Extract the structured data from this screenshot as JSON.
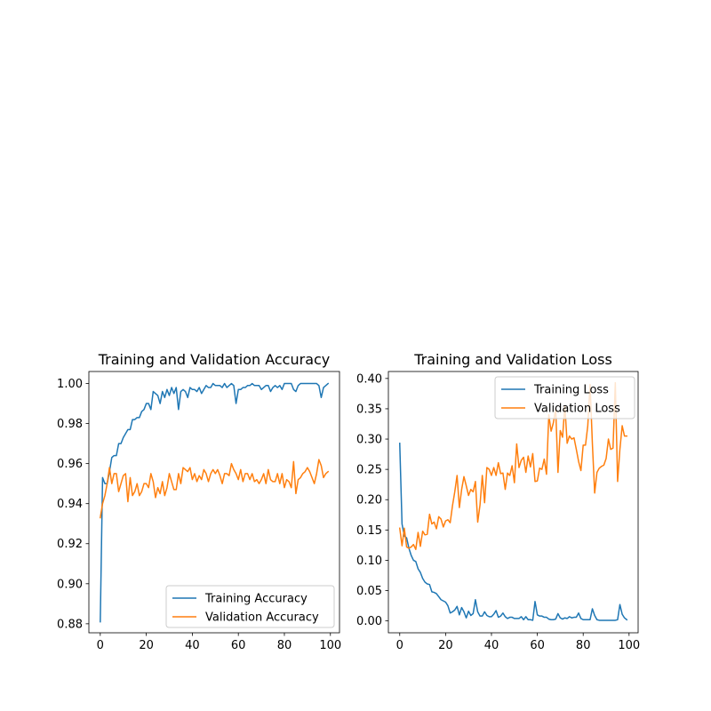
{
  "chart_data": [
    {
      "type": "line",
      "title": "Training and Validation Accuracy",
      "xlabel": "",
      "ylabel": "",
      "xlim": [
        -4.95,
        103.95
      ],
      "ylim": [
        0.8755,
        1.006
      ],
      "xticks": [
        0,
        20,
        40,
        60,
        80,
        100
      ],
      "yticks": [
        0.88,
        0.9,
        0.92,
        0.94,
        0.96,
        0.98,
        1.0
      ],
      "ytick_labels": [
        "0.88",
        "0.90",
        "0.92",
        "0.94",
        "0.96",
        "0.98",
        "1.00"
      ],
      "grid": false,
      "legend_position": "lower-right",
      "series": [
        {
          "name": "Training Accuracy",
          "color": "#1f77b4",
          "x": [
            0,
            1,
            2,
            3,
            4,
            5,
            6,
            7,
            8,
            9,
            10,
            11,
            12,
            13,
            14,
            15,
            16,
            17,
            18,
            19,
            20,
            21,
            22,
            23,
            24,
            25,
            26,
            27,
            28,
            29,
            30,
            31,
            32,
            33,
            34,
            35,
            36,
            37,
            38,
            39,
            40,
            41,
            42,
            43,
            44,
            45,
            46,
            47,
            48,
            49,
            50,
            51,
            52,
            53,
            54,
            55,
            56,
            57,
            58,
            59,
            60,
            61,
            62,
            63,
            64,
            65,
            66,
            67,
            68,
            69,
            70,
            71,
            72,
            73,
            74,
            75,
            76,
            77,
            78,
            79,
            80,
            81,
            82,
            83,
            84,
            85,
            86,
            87,
            88,
            89,
            90,
            91,
            92,
            93,
            94,
            95,
            96,
            97,
            98,
            99
          ],
          "values": [
            0.881,
            0.953,
            0.95,
            0.95,
            0.956,
            0.963,
            0.964,
            0.964,
            0.97,
            0.97,
            0.973,
            0.975,
            0.977,
            0.977,
            0.982,
            0.982,
            0.983,
            0.983,
            0.986,
            0.987,
            0.99,
            0.99,
            0.987,
            0.996,
            0.995,
            0.994,
            0.99,
            0.996,
            0.993,
            0.997,
            0.994,
            0.998,
            0.995,
            0.998,
            0.987,
            0.996,
            0.997,
            0.996,
            0.993,
            0.998,
            0.997,
            0.997,
            0.996,
            0.998,
            0.995,
            0.997,
            0.999,
            0.998,
            0.998,
            1.0,
            0.999,
            0.999,
            0.999,
            0.998,
            1.0,
            0.998,
            0.999,
            1.0,
            0.999,
            0.99,
            0.997,
            0.997,
            0.998,
            0.998,
            0.999,
            0.999,
            1.0,
            0.999,
            0.999,
            0.999,
            0.997,
            0.998,
            0.999,
            0.999,
            0.996,
            0.998,
            0.999,
            0.998,
            0.999,
            0.997,
            1.0,
            1.0,
            1.0,
            1.0,
            0.997,
            0.996,
            0.999,
            1.0,
            1.0,
            1.0,
            1.0,
            1.0,
            1.0,
            1.0,
            1.0,
            0.999,
            0.993,
            0.998,
            0.999,
            1.0
          ]
        },
        {
          "name": "Validation Accuracy",
          "color": "#ff7f0e",
          "x": [
            0,
            1,
            2,
            3,
            4,
            5,
            6,
            7,
            8,
            9,
            10,
            11,
            12,
            13,
            14,
            15,
            16,
            17,
            18,
            19,
            20,
            21,
            22,
            23,
            24,
            25,
            26,
            27,
            28,
            29,
            30,
            31,
            32,
            33,
            34,
            35,
            36,
            37,
            38,
            39,
            40,
            41,
            42,
            43,
            44,
            45,
            46,
            47,
            48,
            49,
            50,
            51,
            52,
            53,
            54,
            55,
            56,
            57,
            58,
            59,
            60,
            61,
            62,
            63,
            64,
            65,
            66,
            67,
            68,
            69,
            70,
            71,
            72,
            73,
            74,
            75,
            76,
            77,
            78,
            79,
            80,
            81,
            82,
            83,
            84,
            85,
            86,
            87,
            88,
            89,
            90,
            91,
            92,
            93,
            94,
            95,
            96,
            97,
            98,
            99
          ],
          "values": [
            0.933,
            0.94,
            0.944,
            0.95,
            0.958,
            0.95,
            0.955,
            0.955,
            0.946,
            0.95,
            0.954,
            0.955,
            0.941,
            0.953,
            0.944,
            0.946,
            0.95,
            0.944,
            0.946,
            0.95,
            0.95,
            0.948,
            0.955,
            0.951,
            0.943,
            0.948,
            0.945,
            0.951,
            0.944,
            0.948,
            0.955,
            0.951,
            0.947,
            0.947,
            0.955,
            0.95,
            0.958,
            0.957,
            0.956,
            0.958,
            0.952,
            0.955,
            0.951,
            0.954,
            0.952,
            0.957,
            0.955,
            0.951,
            0.955,
            0.957,
            0.955,
            0.957,
            0.954,
            0.95,
            0.955,
            0.955,
            0.954,
            0.96,
            0.957,
            0.955,
            0.952,
            0.957,
            0.951,
            0.955,
            0.955,
            0.952,
            0.955,
            0.951,
            0.952,
            0.95,
            0.952,
            0.955,
            0.95,
            0.957,
            0.952,
            0.951,
            0.951,
            0.955,
            0.95,
            0.955,
            0.948,
            0.952,
            0.951,
            0.948,
            0.961,
            0.945,
            0.952,
            0.953,
            0.955,
            0.956,
            0.958,
            0.956,
            0.953,
            0.95,
            0.955,
            0.962,
            0.959,
            0.953,
            0.955,
            0.956
          ]
        }
      ]
    },
    {
      "type": "line",
      "title": "Training and Validation Loss",
      "xlabel": "",
      "ylabel": "",
      "xlim": [
        -4.95,
        103.95
      ],
      "ylim": [
        -0.0196,
        0.4115
      ],
      "xticks": [
        0,
        20,
        40,
        60,
        80,
        100
      ],
      "yticks": [
        0.0,
        0.05,
        0.1,
        0.15,
        0.2,
        0.25,
        0.3,
        0.35,
        0.4
      ],
      "ytick_labels": [
        "0.00",
        "0.05",
        "0.10",
        "0.15",
        "0.20",
        "0.25",
        "0.30",
        "0.35",
        "0.40"
      ],
      "grid": false,
      "legend_position": "upper-right",
      "series": [
        {
          "name": "Training Loss",
          "color": "#1f77b4",
          "x": [
            0,
            1,
            2,
            3,
            4,
            5,
            6,
            7,
            8,
            9,
            10,
            11,
            12,
            13,
            14,
            15,
            16,
            17,
            18,
            19,
            20,
            21,
            22,
            23,
            24,
            25,
            26,
            27,
            28,
            29,
            30,
            31,
            32,
            33,
            34,
            35,
            36,
            37,
            38,
            39,
            40,
            41,
            42,
            43,
            44,
            45,
            46,
            47,
            48,
            49,
            50,
            51,
            52,
            53,
            54,
            55,
            56,
            57,
            58,
            59,
            60,
            61,
            62,
            63,
            64,
            65,
            66,
            67,
            68,
            69,
            70,
            71,
            72,
            73,
            74,
            75,
            76,
            77,
            78,
            79,
            80,
            81,
            82,
            83,
            84,
            85,
            86,
            87,
            88,
            89,
            90,
            91,
            92,
            93,
            94,
            95,
            96,
            97,
            98,
            99
          ],
          "values": [
            0.293,
            0.16,
            0.14,
            0.137,
            0.12,
            0.108,
            0.1,
            0.098,
            0.086,
            0.08,
            0.07,
            0.064,
            0.061,
            0.06,
            0.048,
            0.047,
            0.045,
            0.04,
            0.035,
            0.033,
            0.031,
            0.025,
            0.013,
            0.015,
            0.018,
            0.024,
            0.01,
            0.022,
            0.015,
            0.005,
            0.016,
            0.009,
            0.012,
            0.035,
            0.015,
            0.008,
            0.008,
            0.015,
            0.009,
            0.007,
            0.007,
            0.011,
            0.017,
            0.006,
            0.008,
            0.013,
            0.007,
            0.004,
            0.006,
            0.006,
            0.004,
            0.004,
            0.004,
            0.007,
            0.002,
            0.007,
            0.002,
            0.002,
            0.001,
            0.032,
            0.01,
            0.008,
            0.008,
            0.006,
            0.006,
            0.003,
            0.002,
            0.002,
            0.003,
            0.012,
            0.005,
            0.003,
            0.005,
            0.004,
            0.007,
            0.005,
            0.006,
            0.006,
            0.013,
            0.004,
            0.002,
            0.002,
            0.002,
            0.002,
            0.02,
            0.009,
            0.002,
            0.001,
            0.001,
            0.001,
            0.001,
            0.001,
            0.001,
            0.001,
            0.001,
            0.002,
            0.027,
            0.011,
            0.005,
            0.002
          ]
        },
        {
          "name": "Validation Loss",
          "color": "#ff7f0e",
          "x": [
            0,
            1,
            2,
            3,
            4,
            5,
            6,
            7,
            8,
            9,
            10,
            11,
            12,
            13,
            14,
            15,
            16,
            17,
            18,
            19,
            20,
            21,
            22,
            23,
            24,
            25,
            26,
            27,
            28,
            29,
            30,
            31,
            32,
            33,
            34,
            35,
            36,
            37,
            38,
            39,
            40,
            41,
            42,
            43,
            44,
            45,
            46,
            47,
            48,
            49,
            50,
            51,
            52,
            53,
            54,
            55,
            56,
            57,
            58,
            59,
            60,
            61,
            62,
            63,
            64,
            65,
            66,
            67,
            68,
            69,
            70,
            71,
            72,
            73,
            74,
            75,
            76,
            77,
            78,
            79,
            80,
            81,
            82,
            83,
            84,
            85,
            86,
            87,
            88,
            89,
            90,
            91,
            92,
            93,
            94,
            95,
            96,
            97,
            98,
            99
          ],
          "values": [
            0.153,
            0.124,
            0.153,
            0.122,
            0.12,
            0.122,
            0.126,
            0.118,
            0.146,
            0.123,
            0.148,
            0.142,
            0.143,
            0.176,
            0.16,
            0.163,
            0.152,
            0.172,
            0.168,
            0.155,
            0.165,
            0.167,
            0.162,
            0.19,
            0.213,
            0.24,
            0.187,
            0.217,
            0.238,
            0.223,
            0.207,
            0.217,
            0.213,
            0.23,
            0.163,
            0.191,
            0.24,
            0.195,
            0.253,
            0.25,
            0.24,
            0.253,
            0.24,
            0.261,
            0.243,
            0.244,
            0.217,
            0.244,
            0.24,
            0.256,
            0.228,
            0.292,
            0.253,
            0.265,
            0.27,
            0.245,
            0.272,
            0.254,
            0.276,
            0.23,
            0.231,
            0.252,
            0.25,
            0.267,
            0.242,
            0.34,
            0.313,
            0.327,
            0.35,
            0.245,
            0.314,
            0.303,
            0.355,
            0.293,
            0.305,
            0.3,
            0.302,
            0.283,
            0.263,
            0.248,
            0.29,
            0.29,
            0.322,
            0.39,
            0.293,
            0.211,
            0.245,
            0.252,
            0.255,
            0.257,
            0.268,
            0.3,
            0.283,
            0.285,
            0.393,
            0.23,
            0.283,
            0.322,
            0.305,
            0.305
          ]
        }
      ]
    }
  ]
}
